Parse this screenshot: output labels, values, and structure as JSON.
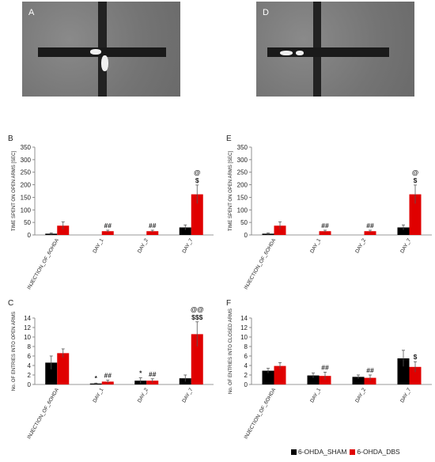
{
  "photos": [
    {
      "label": "A"
    },
    {
      "label": "D"
    }
  ],
  "legend": [
    {
      "name": "6-OHDA_SHAM",
      "color": "#000000"
    },
    {
      "name": "6-OHDA_DBS",
      "color": "#e00000"
    }
  ],
  "colors": {
    "sham": "#000000",
    "dbs": "#e00000"
  },
  "chart_data": [
    {
      "panel": "B",
      "type": "bar",
      "ylabel": "TIME SPENT ON OPEN ARMS [SEC]",
      "ylim": [
        0,
        350
      ],
      "yticks": [
        0,
        50,
        100,
        150,
        200,
        250,
        300,
        350
      ],
      "categories": [
        "INJECTION_OF_6OHDA",
        "DAY_1",
        "DAY_2",
        "DAY_7"
      ],
      "series": [
        {
          "name": "6-OHDA_SHAM",
          "values": [
            5,
            0,
            0,
            30
          ],
          "errors": [
            3,
            0,
            0,
            10
          ]
        },
        {
          "name": "6-OHDA_DBS",
          "values": [
            37,
            15,
            15,
            162
          ],
          "errors": [
            15,
            4,
            4,
            37
          ]
        }
      ],
      "annotations": [
        {
          "category": "DAY_1",
          "series": 1,
          "text": "##"
        },
        {
          "category": "DAY_2",
          "series": 1,
          "text": "##"
        },
        {
          "category": "DAY_7",
          "series": 1,
          "text": "$"
        },
        {
          "category": "DAY_7",
          "series": 1,
          "text": "@"
        }
      ]
    },
    {
      "panel": "E",
      "type": "bar",
      "ylabel": "TIME SPENT ON OPEN ARMS [SEC]",
      "ylim": [
        0,
        350
      ],
      "yticks": [
        0,
        50,
        100,
        150,
        200,
        250,
        300,
        350
      ],
      "categories": [
        "INJECTION_OF_6OHDA",
        "DAY_1",
        "DAY_2",
        "DAY_7"
      ],
      "series": [
        {
          "name": "6-OHDA_SHAM",
          "values": [
            5,
            0,
            0,
            30
          ],
          "errors": [
            3,
            0,
            0,
            10
          ]
        },
        {
          "name": "6-OHDA_DBS",
          "values": [
            37,
            15,
            15,
            162
          ],
          "errors": [
            15,
            4,
            4,
            37
          ]
        }
      ],
      "annotations": [
        {
          "category": "DAY_1",
          "series": 1,
          "text": "##"
        },
        {
          "category": "DAY_2",
          "series": 1,
          "text": "##"
        },
        {
          "category": "DAY_7",
          "series": 1,
          "text": "$"
        },
        {
          "category": "DAY_7",
          "series": 1,
          "text": "@"
        }
      ]
    },
    {
      "panel": "C",
      "type": "bar",
      "ylabel": "No. OF ENTRIES INTO OPEN ARMS",
      "ylim": [
        0,
        14
      ],
      "yticks": [
        0,
        2,
        4,
        6,
        8,
        10,
        12,
        14
      ],
      "categories": [
        "INJECTION_OF_6OHDA",
        "DAY_1",
        "DAY_2",
        "DAY_7"
      ],
      "series": [
        {
          "name": "6-OHDA_SHAM",
          "values": [
            4.6,
            0.2,
            0.8,
            1.3
          ],
          "errors": [
            1.4,
            0.1,
            0.6,
            0.7
          ]
        },
        {
          "name": "6-OHDA_DBS",
          "values": [
            6.6,
            0.6,
            0.8,
            10.6
          ],
          "errors": [
            0.9,
            0.3,
            0.4,
            2.6
          ]
        }
      ],
      "annotations": [
        {
          "category": "DAY_1",
          "series": 0,
          "text": "*"
        },
        {
          "category": "DAY_1",
          "series": 1,
          "text": "##"
        },
        {
          "category": "DAY_2",
          "series": 0,
          "text": "*"
        },
        {
          "category": "DAY_2",
          "series": 1,
          "text": "##"
        },
        {
          "category": "DAY_7",
          "series": 1,
          "text": "$$$"
        },
        {
          "category": "DAY_7",
          "series": 1,
          "text": "@@"
        }
      ]
    },
    {
      "panel": "F",
      "type": "bar",
      "ylabel": "No. OF ENTRIES INTO CLOSED ARMS",
      "ylim": [
        0,
        14
      ],
      "yticks": [
        0,
        2,
        4,
        6,
        8,
        10,
        12,
        14
      ],
      "categories": [
        "INJECTION_OF_6OHDA",
        "DAY_1",
        "DAY_2",
        "DAY_7"
      ],
      "series": [
        {
          "name": "6-OHDA_SHAM",
          "values": [
            2.9,
            1.9,
            1.6,
            5.5
          ],
          "errors": [
            0.5,
            0.5,
            0.4,
            1.7
          ]
        },
        {
          "name": "6-OHDA_DBS",
          "values": [
            3.9,
            1.8,
            1.4,
            3.7
          ],
          "errors": [
            0.7,
            0.8,
            0.6,
            1.1
          ]
        }
      ],
      "annotations": [
        {
          "category": "DAY_1",
          "series": 1,
          "text": "##"
        },
        {
          "category": "DAY_2",
          "series": 1,
          "text": "##"
        },
        {
          "category": "DAY_7",
          "series": 1,
          "text": "$"
        }
      ]
    }
  ]
}
